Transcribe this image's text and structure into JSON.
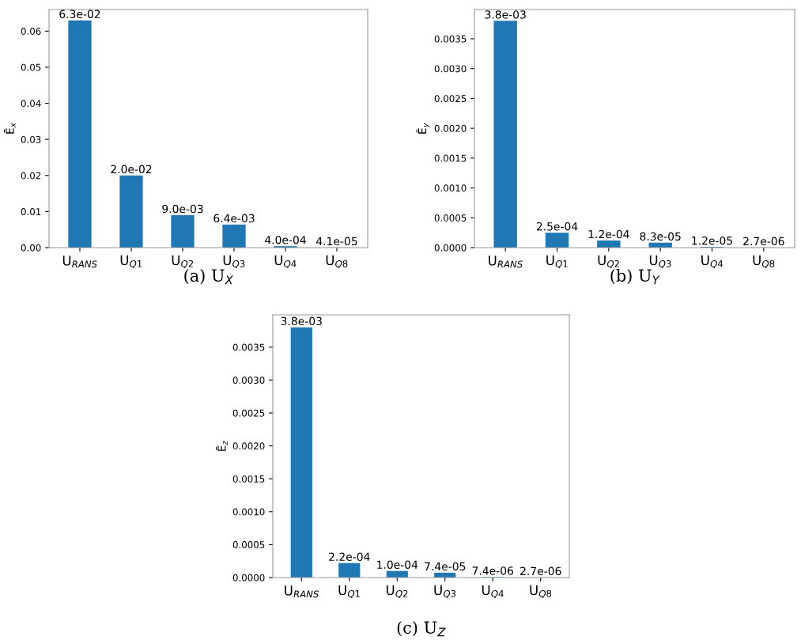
{
  "chart_data": [
    {
      "type": "bar",
      "categories": [
        "U$_{RANS}$",
        "U$_{Q1}$",
        "U$_{Q2}$",
        "U$_{Q3}$",
        "U$_{Q4}$",
        "U$_{Q8}$"
      ],
      "values": [
        0.063,
        0.02,
        0.009,
        0.0064,
        0.0004,
        4.1e-05
      ],
      "value_labels": [
        "6.3e-02",
        "2.0e-02",
        "9.0e-03",
        "6.4e-03",
        "4.0e-04",
        "4.1e-05"
      ],
      "color": "#1f77b4",
      "ylabel": "Ē$_{x}$",
      "ylim": [
        0,
        0.066
      ],
      "yticks": [
        {
          "value": 0,
          "label": "0.00"
        },
        {
          "value": 0.01,
          "label": "0.01"
        },
        {
          "value": 0.02,
          "label": "0.02"
        },
        {
          "value": 0.03,
          "label": "0.03"
        },
        {
          "value": 0.04,
          "label": "0.04"
        },
        {
          "value": 0.05,
          "label": "0.05"
        },
        {
          "value": 0.06,
          "label": "0.06"
        }
      ],
      "annotations": [
        "(a) U$_{X}$"
      ]
    },
    {
      "type": "bar",
      "categories": [
        "U$_{RANS}$",
        "U$_{Q1}$",
        "U$_{Q2}$",
        "U$_{Q3}$",
        "U$_{Q4}$",
        "U$_{Q8}$"
      ],
      "values": [
        0.0038,
        0.00025,
        0.00012,
        8.3e-05,
        1.2e-05,
        2.7e-06
      ],
      "value_labels": [
        "3.8e-03",
        "2.5e-04",
        "1.2e-04",
        "8.3e-05",
        "1.2e-05",
        "2.7e-06"
      ],
      "color": "#1f77b4",
      "ylabel": "Ē$_{y}$",
      "ylim": [
        0,
        0.00399
      ],
      "yticks": [
        {
          "value": 0,
          "label": "0.0000"
        },
        {
          "value": 0.0005,
          "label": "0.0005"
        },
        {
          "value": 0.001,
          "label": "0.0010"
        },
        {
          "value": 0.0015,
          "label": "0.0015"
        },
        {
          "value": 0.002,
          "label": "0.0020"
        },
        {
          "value": 0.0025,
          "label": "0.0025"
        },
        {
          "value": 0.003,
          "label": "0.0030"
        },
        {
          "value": 0.0035,
          "label": "0.0035"
        }
      ],
      "annotations": [
        "(b) U$_{Y}$"
      ]
    },
    {
      "type": "bar",
      "categories": [
        "U$_{RANS}$",
        "U$_{Q1}$",
        "U$_{Q2}$",
        "U$_{Q3}$",
        "U$_{Q4}$",
        "U$_{Q8}$"
      ],
      "values": [
        0.0038,
        0.00022,
        0.0001,
        7.4e-05,
        7.4e-06,
        2.7e-06
      ],
      "value_labels": [
        "3.8e-03",
        "2.2e-04",
        "1.0e-04",
        "7.4e-05",
        "7.4e-06",
        "2.7e-06"
      ],
      "color": "#1f77b4",
      "ylabel": "Ē$_{z}$",
      "ylim": [
        0,
        0.00399
      ],
      "yticks": [
        {
          "value": 0,
          "label": "0.0000"
        },
        {
          "value": 0.0005,
          "label": "0.0005"
        },
        {
          "value": 0.001,
          "label": "0.0010"
        },
        {
          "value": 0.0015,
          "label": "0.0015"
        },
        {
          "value": 0.002,
          "label": "0.0020"
        },
        {
          "value": 0.0025,
          "label": "0.0025"
        },
        {
          "value": 0.003,
          "label": "0.0030"
        },
        {
          "value": 0.0035,
          "label": "0.0035"
        }
      ],
      "annotations": [
        "(c) U$_{Z}$"
      ]
    }
  ]
}
